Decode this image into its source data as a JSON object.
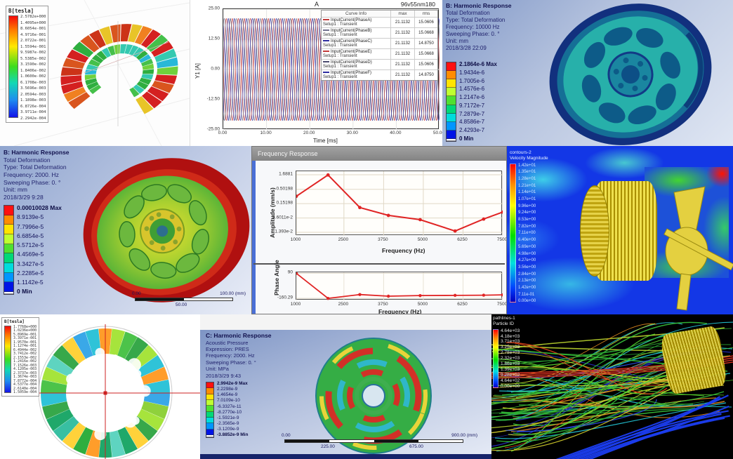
{
  "colors": {
    "ansys_bands": [
      "#ff1010",
      "#ff8c00",
      "#ffe400",
      "#bfff30",
      "#4fe030",
      "#00d878",
      "#00dcdc",
      "#0096ff",
      "#0014e6"
    ],
    "accent_red": "#e02424",
    "fluent_rainbow_top_to_bottom": [
      "#ff0000",
      "#ffff00",
      "#00e000",
      "#00e0e0",
      "#0000c0"
    ]
  },
  "panels": {
    "maxwell_torus": {
      "legend_title": "B[tesla]",
      "values": [
        "2.5782e+000",
        "1.4095e+000",
        "8.6054e-001",
        "4.9716e-001",
        "2.0722e-001",
        "1.5594e-001",
        "9.5987e-002",
        "5.5385e-002",
        "3.1590e-002",
        "1.8406e-002",
        "1.0600e-002",
        "6.1708e-003",
        "3.5696e-003",
        "2.0594e-003",
        "1.1898e-003",
        "6.8726e-004",
        "3.9711e-004",
        "2.2942e-004"
      ]
    },
    "harmonic_b1": {
      "lines": [
        "B: Harmonic Response",
        "Total Deformation",
        "Type: Total Deformation",
        "Frequency: 10000 Hz",
        "Sweeping Phase: 0. °",
        "Unit: mm",
        "2018/3/28 22:09"
      ],
      "values": [
        "2.1864e-6 Max",
        "1.9434e-6",
        "1.7005e-6",
        "1.4576e-6",
        "1.2147e-6",
        "9.7172e-7",
        "7.2879e-7",
        "4.8586e-7",
        "2.4293e-7",
        "0 Min"
      ]
    },
    "harmonic_b2": {
      "lines": [
        "B: Harmonic Response",
        "Total Deformation",
        "Type: Total Deformation",
        "Frequency: 2000. Hz",
        "Sweeping Phase: 0. °",
        "Unit: mm",
        "2018/3/29 9:28"
      ],
      "values": [
        "0.00010028 Max",
        "8.9139e-5",
        "7.7996e-5",
        "6.6854e-5",
        "5.5712e-5",
        "4.4569e-5",
        "3.3427e-5",
        "2.2285e-5",
        "1.1142e-5",
        "0 Min"
      ],
      "ruler": {
        "start": "0.00",
        "end": "100.00 (mm)",
        "mid": "50.00"
      }
    },
    "freq_response": {
      "window_title": "Frequency Response"
    },
    "cfd_velocity": {
      "title_lines": [
        "contours-2",
        "Velocity Magnitude"
      ],
      "values": [
        "1.42e+01",
        "1.35e+01",
        "1.28e+01",
        "1.21e+01",
        "1.14e+01",
        "1.07e+01",
        "9.96e+00",
        "9.24e+00",
        "8.53e+00",
        "7.82e+00",
        "7.11e+00",
        "6.40e+00",
        "5.69e+00",
        "4.98e+00",
        "4.27e+00",
        "3.56e+00",
        "2.84e+00",
        "2.13e+00",
        "1.42e+00",
        "7.11e-01",
        "0.00e+00"
      ]
    },
    "maxwell_ring": {
      "legend_title": "B[tesla]",
      "values": [
        "1.7768e+000",
        "1.0236e+000",
        "5.8969e-001",
        "3.3971e-001",
        "1.9570e-001",
        "1.1274e-001",
        "6.4944e-002",
        "3.7412e-002",
        "2.1553e-002",
        "1.2416e-002",
        "7.1526e-003",
        "4.1205e-003",
        "2.3737e-003",
        "1.3674e-003",
        "7.8772e-004",
        "4.5377e-004",
        "2.6140e-004",
        "1.5059e-004"
      ]
    },
    "harmonic_c": {
      "lines": [
        "C: Harmonic Response",
        "Acoustic Pressure",
        "Expression: PRES",
        "Frequency: 2000. Hz",
        "Sweeping Phase: 0. °",
        "Unit: MPa",
        "2018/3/29 9:43"
      ],
      "values": [
        "2.9942e-9 Max",
        "2.2298e-9",
        "1.4654e-9",
        "7.0109e-10",
        "-6.3327e-11",
        "-8.2770e-10",
        "-1.5921e-9",
        "-2.3565e-9",
        "-3.1209e-9",
        "-3.8852e-9 Min"
      ],
      "ruler": {
        "start": "0.00",
        "end": "900.00 (mm)",
        "q1": "225.00",
        "q3": "675.00"
      }
    },
    "particle_traces": {
      "title_lines": [
        "pathlines-1",
        "Particle ID"
      ],
      "values": [
        "4.64e+03",
        "4.18e+03",
        "3.71e+03",
        "3.25e+03",
        "2.78e+03",
        "2.32e+03",
        "1.86e+03",
        "1.39e+03",
        "9.28e+02",
        "4.64e+02",
        "0.00e+00"
      ]
    }
  },
  "chart_data": [
    {
      "type": "line",
      "title": "A",
      "annotation": "96v55nm180",
      "xlabel": "Time [ms]",
      "ylabel": "Y1 [A]",
      "xlim": [
        0,
        50
      ],
      "ylim": [
        -25,
        25
      ],
      "xticks": [
        "0.00",
        "10.00",
        "20.00",
        "30.00",
        "40.00",
        "50.00"
      ],
      "yticks": [
        "25.00",
        "12.50",
        "0.00",
        "-12.50",
        "-25.00"
      ],
      "amplitude": 21.1132,
      "period_ms": 2.7778,
      "legend_header": [
        "Curve Info",
        "max",
        "rms"
      ],
      "series": [
        {
          "name": "InputCurrent(PhaseA)",
          "setup": "Setup1 : Transient",
          "max": "21.1132",
          "rms": "15.0606",
          "color": "#c23b3b",
          "phase_deg": 0
        },
        {
          "name": "InputCurrent(PhaseB)",
          "setup": "Setup1 : Transient",
          "max": "21.1132",
          "rms": "15.0668",
          "color": "#70708e",
          "phase_deg": 60
        },
        {
          "name": "InputCurrent(PhaseC)",
          "setup": "Setup1 : Transient",
          "max": "21.1132",
          "rms": "14.8750",
          "color": "#2e2ea0",
          "phase_deg": 120
        },
        {
          "name": "InputCurrent(PhaseE)",
          "setup": "Setup1 : Transient",
          "max": "21.1132",
          "rms": "15.0668",
          "color": "#c23b3b",
          "phase_deg": 180
        },
        {
          "name": "InputCurrent(PhaseD)",
          "setup": "Setup1 : Transient",
          "max": "21.1132",
          "rms": "15.0606",
          "color": "#4a4a6e",
          "phase_deg": 240
        },
        {
          "name": "InputCurrent(PhaseF)",
          "setup": "Setup1 : Transient",
          "max": "21.1132",
          "rms": "14.8750",
          "color": "#2e2ea0",
          "phase_deg": 300
        }
      ]
    },
    {
      "type": "line",
      "title": "Frequency Response - Amplitude",
      "ylabel": "Amplitude (mm/s)",
      "xlabel": "Frequency (Hz)",
      "y_scale": "log",
      "yticks": [
        "1.6881",
        "0.50198",
        "0.15198",
        "4.6011e-2",
        "1.393e-2"
      ],
      "xticks": [
        "1000",
        "2500",
        "3750",
        "5000",
        "6250",
        "7500"
      ],
      "xlim": [
        1000,
        7500
      ],
      "x": [
        1000,
        2000,
        3000,
        3900,
        4900,
        6000,
        6900,
        7500
      ],
      "y": [
        0.28,
        1.66,
        0.11,
        0.057,
        0.04,
        0.0155,
        0.042,
        0.075
      ],
      "line_color": "#e02424"
    },
    {
      "type": "line",
      "title": "Frequency Response - Phase Angle",
      "ylabel": "Phase Angle",
      "xlabel": "Frequency (Hz)",
      "yticks": [
        "90",
        "-160.29"
      ],
      "ylim": [
        -180,
        100
      ],
      "xticks": [
        "1000",
        "2500",
        "3750",
        "5000",
        "6250",
        "7500"
      ],
      "xlim": [
        1000,
        7500
      ],
      "x": [
        1000,
        2000,
        3000,
        3900,
        4900,
        6000,
        6900,
        7500
      ],
      "y": [
        90,
        -160,
        -122,
        -138,
        -132,
        -130,
        -128,
        -125
      ],
      "line_color": "#e02424"
    }
  ]
}
